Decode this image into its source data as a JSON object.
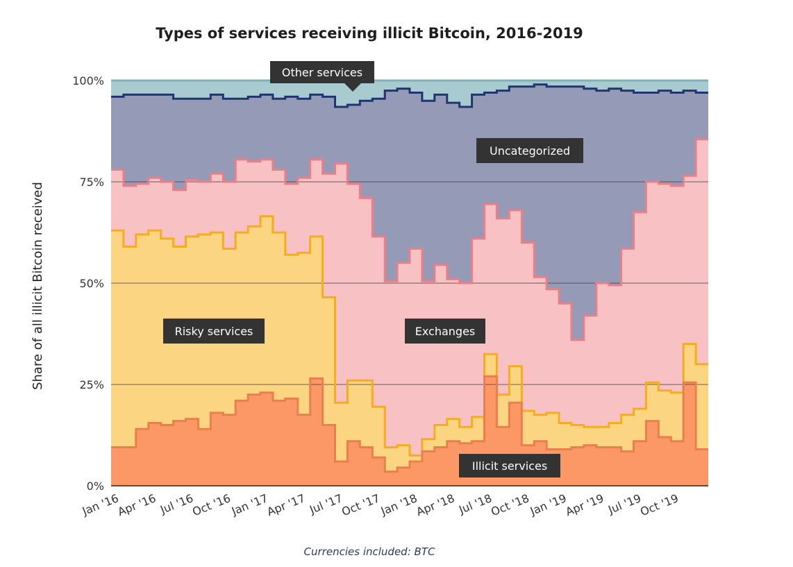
{
  "chart_data": {
    "type": "area",
    "stacked": true,
    "title": "Types of services receiving illicit Bitcoin, 2016-2019",
    "ylabel": "Share of all illicit Bitcoin received",
    "footnote": "Currencies included: BTC",
    "ylim": [
      0,
      100
    ],
    "y_ticks": [
      "0%",
      "25%",
      "50%",
      "75%",
      "100%"
    ],
    "x_tick_labels": [
      "Jan '16",
      "Apr '16",
      "Jul '16",
      "Oct '16",
      "Jan '17",
      "Apr '17",
      "Jul '17",
      "Oct '17",
      "Jan '18",
      "Apr '18",
      "Jul '18",
      "Oct '18",
      "Jan '19",
      "Apr '19",
      "Jul '19",
      "Oct '19"
    ],
    "x": [
      "2016-01",
      "2016-02",
      "2016-03",
      "2016-04",
      "2016-05",
      "2016-06",
      "2016-07",
      "2016-08",
      "2016-09",
      "2016-10",
      "2016-11",
      "2016-12",
      "2017-01",
      "2017-02",
      "2017-03",
      "2017-04",
      "2017-05",
      "2017-06",
      "2017-07",
      "2017-08",
      "2017-09",
      "2017-10",
      "2017-11",
      "2017-12",
      "2018-01",
      "2018-02",
      "2018-03",
      "2018-04",
      "2018-05",
      "2018-06",
      "2018-07",
      "2018-08",
      "2018-09",
      "2018-10",
      "2018-11",
      "2018-12",
      "2019-01",
      "2019-02",
      "2019-03",
      "2019-04",
      "2019-05",
      "2019-06",
      "2019-07",
      "2019-08",
      "2019-09",
      "2019-10",
      "2019-11",
      "2019-12"
    ],
    "series": [
      {
        "name": "Illicit services",
        "color": "#fc9766",
        "line": "#e8804e",
        "values": [
          9.5,
          9.5,
          14,
          15.5,
          15,
          16,
          16.5,
          14,
          18,
          17.5,
          21,
          22.5,
          23,
          21,
          21.5,
          17.5,
          26.5,
          15,
          6,
          11,
          9.5,
          7,
          3.5,
          4.5,
          6,
          8.5,
          9.5,
          11,
          10.5,
          11,
          27,
          14.5,
          20.5,
          10,
          11,
          9,
          9,
          9.5,
          10,
          9.5,
          9.5,
          8.5,
          11,
          16,
          12,
          11,
          25.5,
          9
        ]
      },
      {
        "name": "Risky services",
        "color": "#fcd582",
        "line": "#f5ad1f",
        "values": [
          63,
          59,
          62,
          63,
          61,
          59,
          61.5,
          62,
          62.5,
          58.5,
          62.5,
          64,
          66.5,
          62.5,
          57,
          57.5,
          61.5,
          46.5,
          20.5,
          26,
          26,
          19.5,
          9.5,
          10,
          7.5,
          11.5,
          15,
          16.5,
          14.5,
          17,
          32.5,
          22.5,
          29.5,
          18.5,
          17.5,
          18,
          15.5,
          15,
          14.5,
          14.5,
          15.5,
          17.5,
          19,
          25.5,
          23.5,
          23,
          35,
          30
        ]
      },
      {
        "name": "Exchanges",
        "color": "#f8c1c4",
        "line": "#e98089",
        "values": [
          78,
          74,
          74.5,
          76,
          75,
          73,
          75.5,
          75,
          77,
          75,
          80.5,
          80,
          80.5,
          78,
          74.5,
          76,
          80.5,
          77,
          79.5,
          74.5,
          71,
          61.5,
          50.5,
          55,
          58.5,
          50.5,
          54.5,
          51,
          50,
          61,
          69.5,
          66,
          68,
          60,
          51.5,
          48.5,
          45,
          36,
          42,
          50,
          49.5,
          58.5,
          67.5,
          75,
          74.5,
          74,
          76.5,
          85.5
        ]
      },
      {
        "name": "Uncategorized",
        "color": "#959bb7",
        "line": "#1e3570",
        "values": [
          96,
          96.5,
          96.5,
          96.5,
          96.5,
          95.5,
          95.5,
          95.5,
          96.5,
          95.5,
          95.5,
          96,
          96.5,
          95.5,
          96,
          95.5,
          96.5,
          96,
          93.5,
          94,
          95,
          95.5,
          97.5,
          98,
          97,
          95,
          96.5,
          94.5,
          93.5,
          96.5,
          97,
          97.5,
          98.5,
          98.5,
          99,
          98.5,
          98.5,
          98.5,
          98,
          97.5,
          98,
          97.5,
          97,
          97,
          97.5,
          97,
          97.5,
          97
        ]
      },
      {
        "name": "Other services",
        "color": "#a8cbd0",
        "line": "#7fb0b8",
        "values": [
          100,
          100,
          100,
          100,
          100,
          100,
          100,
          100,
          100,
          100,
          100,
          100,
          100,
          100,
          100,
          100,
          100,
          100,
          100,
          100,
          100,
          100,
          100,
          100,
          100,
          100,
          100,
          100,
          100,
          100,
          100,
          100,
          100,
          100,
          100,
          100,
          100,
          100,
          100,
          100,
          100,
          100,
          100,
          100,
          100,
          100,
          100,
          100
        ]
      }
    ],
    "annotations": [
      {
        "text": "Other services",
        "series": "Other services",
        "pointer": "down"
      },
      {
        "text": "Uncategorized",
        "series": "Uncategorized"
      },
      {
        "text": "Risky services",
        "series": "Risky services"
      },
      {
        "text": "Exchanges",
        "series": "Exchanges"
      },
      {
        "text": "Illicit services",
        "series": "Illicit services"
      }
    ],
    "grid": true,
    "legend": "inline labels"
  }
}
